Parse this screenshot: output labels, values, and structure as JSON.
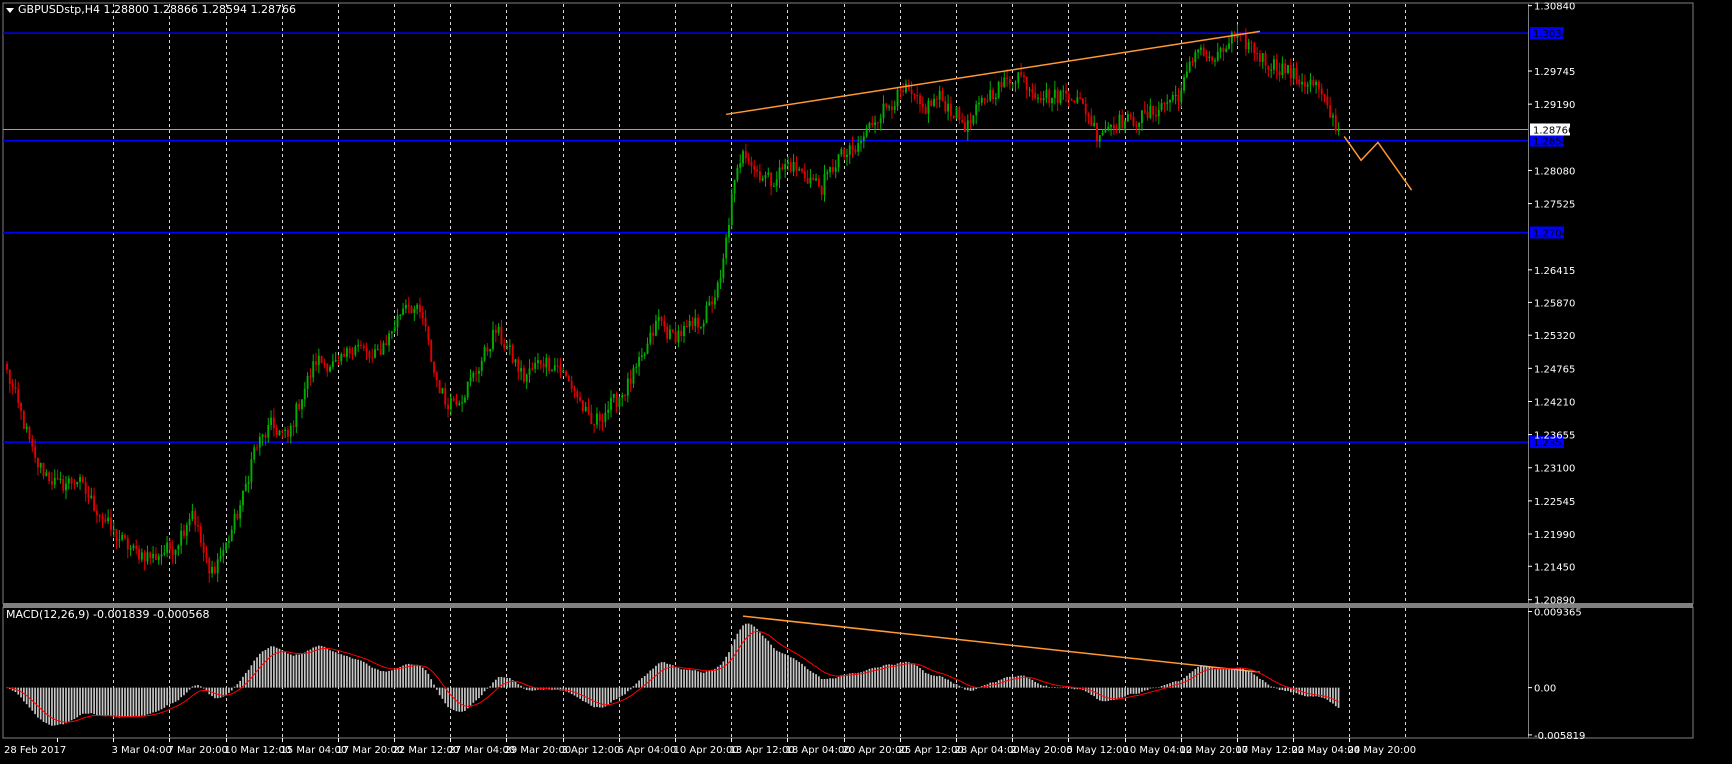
{
  "symbol_info": "GBPUSDstp,H4  1.28800 1.28866 1.28594 1.28766",
  "colors": {
    "background": "#000000",
    "grid": "#ffffff",
    "candle_up": "#00b000",
    "candle_down": "#e00000",
    "support_lines": "#0000ff",
    "trendlines": "#ff9933",
    "macd_hist": "#c8c8c8",
    "signal": "#ff0000"
  },
  "price_axis": {
    "ticks": [
      {
        "label": "1.30840",
        "value": 1.3084
      },
      {
        "label": "1.29745",
        "value": 1.29745
      },
      {
        "label": "1.29190",
        "value": 1.2919
      },
      {
        "label": "1.28080",
        "value": 1.2808
      },
      {
        "label": "1.27525",
        "value": 1.27525
      },
      {
        "label": "1.26415",
        "value": 1.26415
      },
      {
        "label": "1.25870",
        "value": 1.2587
      },
      {
        "label": "1.25320",
        "value": 1.2532
      },
      {
        "label": "1.24765",
        "value": 1.24765
      },
      {
        "label": "1.24210",
        "value": 1.2421
      },
      {
        "label": "1.23655",
        "value": 1.23655
      },
      {
        "label": "1.23100",
        "value": 1.231
      },
      {
        "label": "1.22545",
        "value": 1.22545
      },
      {
        "label": "1.21990",
        "value": 1.2199
      },
      {
        "label": "1.21450",
        "value": 1.2145
      },
      {
        "label": "1.20890",
        "value": 1.2089
      }
    ],
    "current_price": {
      "label": "1.28766",
      "value": 1.28766
    }
  },
  "horizontal_levels": [
    {
      "name": "level-1",
      "value": 1.3038,
      "label": "1.30380"
    },
    {
      "name": "level-2",
      "value": 1.2858,
      "label": "1.28580"
    },
    {
      "name": "level-3",
      "value": 1.2704,
      "label": "1.27040"
    },
    {
      "name": "level-4",
      "value": 1.2353,
      "label": "1.23530"
    }
  ],
  "time_axis": {
    "labels": [
      {
        "label": "28 Feb 2017",
        "index": 0
      },
      {
        "label": "3 Mar 04:00",
        "index": 20
      },
      {
        "label": "7 Mar 20:00",
        "index": 40
      },
      {
        "label": "10 Mar 12:00",
        "index": 60
      },
      {
        "label": "15 Mar 04:00",
        "index": 80
      },
      {
        "label": "17 Mar 20:00",
        "index": 100
      },
      {
        "label": "22 Mar 12:00",
        "index": 120
      },
      {
        "label": "27 Mar 04:00",
        "index": 140
      },
      {
        "label": "29 Mar 20:00",
        "index": 160
      },
      {
        "label": "3 Apr 12:00",
        "index": 180
      },
      {
        "label": "6 Apr 04:00",
        "index": 200
      },
      {
        "label": "10 Apr 20:00",
        "index": 220
      },
      {
        "label": "13 Apr 12:00",
        "index": 240
      },
      {
        "label": "18 Apr 04:00",
        "index": 260
      },
      {
        "label": "20 Apr 20:00",
        "index": 280
      },
      {
        "label": "25 Apr 12:00",
        "index": 300
      },
      {
        "label": "28 Apr 04:00",
        "index": 320
      },
      {
        "label": "2 May 20:00",
        "index": 340
      },
      {
        "label": "5 May 12:00",
        "index": 360
      },
      {
        "label": "10 May 04:00",
        "index": 380
      },
      {
        "label": "12 May 20:00",
        "index": 400
      },
      {
        "label": "17 May 12:00",
        "index": 420
      },
      {
        "label": "22 May 04:00",
        "index": 440
      },
      {
        "label": "24 May 20:00",
        "index": 460
      }
    ],
    "bar_count": 500
  },
  "price_keypoints": [
    [
      0,
      1.247
    ],
    [
      5,
      1.24
    ],
    [
      10,
      1.232
    ],
    [
      18,
      1.228
    ],
    [
      25,
      1.229
    ],
    [
      32,
      1.224
    ],
    [
      38,
      1.22
    ],
    [
      45,
      1.217
    ],
    [
      52,
      1.216
    ],
    [
      60,
      1.218
    ],
    [
      66,
      1.224
    ],
    [
      72,
      1.213
    ],
    [
      78,
      1.218
    ],
    [
      84,
      1.226
    ],
    [
      88,
      1.234
    ],
    [
      94,
      1.238
    ],
    [
      100,
      1.236
    ],
    [
      104,
      1.242
    ],
    [
      110,
      1.249
    ],
    [
      118,
      1.248
    ],
    [
      124,
      1.252
    ],
    [
      130,
      1.249
    ],
    [
      136,
      1.253
    ],
    [
      142,
      1.259
    ],
    [
      148,
      1.256
    ],
    [
      152,
      1.247
    ],
    [
      156,
      1.242
    ],
    [
      162,
      1.243
    ],
    [
      168,
      1.248
    ],
    [
      174,
      1.254
    ],
    [
      178,
      1.251
    ],
    [
      184,
      1.246
    ],
    [
      190,
      1.249
    ],
    [
      196,
      1.248
    ],
    [
      202,
      1.244
    ],
    [
      208,
      1.238
    ],
    [
      214,
      1.241
    ],
    [
      220,
      1.244
    ],
    [
      226,
      1.249
    ],
    [
      232,
      1.256
    ],
    [
      236,
      1.253
    ],
    [
      242,
      1.254
    ],
    [
      248,
      1.256
    ],
    [
      254,
      1.262
    ],
    [
      258,
      1.276
    ],
    [
      262,
      1.285
    ],
    [
      266,
      1.281
    ],
    [
      272,
      1.279
    ],
    [
      278,
      1.282
    ],
    [
      284,
      1.28
    ],
    [
      290,
      1.278
    ],
    [
      296,
      1.283
    ],
    [
      302,
      1.284
    ],
    [
      308,
      1.289
    ],
    [
      314,
      1.292
    ],
    [
      320,
      1.294
    ],
    [
      326,
      1.291
    ],
    [
      332,
      1.293
    ],
    [
      338,
      1.29
    ],
    [
      342,
      1.288
    ],
    [
      348,
      1.293
    ],
    [
      354,
      1.295
    ],
    [
      360,
      1.297
    ],
    [
      366,
      1.294
    ],
    [
      372,
      1.293
    ],
    [
      378,
      1.294
    ],
    [
      384,
      1.291
    ],
    [
      388,
      1.287
    ],
    [
      394,
      1.289
    ],
    [
      400,
      1.289
    ],
    [
      406,
      1.29
    ],
    [
      412,
      1.292
    ],
    [
      418,
      1.294
    ],
    [
      424,
      1.302
    ],
    [
      428,
      1.299
    ],
    [
      432,
      1.3
    ],
    [
      436,
      1.303
    ],
    [
      442,
      1.302
    ],
    [
      448,
      1.299
    ],
    [
      454,
      1.298
    ],
    [
      460,
      1.296
    ],
    [
      466,
      1.295
    ],
    [
      470,
      1.291
    ],
    [
      474,
      1.2877
    ]
  ],
  "projection": [
    {
      "index": 476,
      "value": 1.2865
    },
    {
      "index": 482,
      "value": 1.2825
    },
    {
      "index": 488,
      "value": 1.2855
    },
    {
      "index": 500,
      "value": 1.2775
    }
  ],
  "price_trendline": [
    {
      "index": 256,
      "value": 1.2902
    },
    {
      "index": 446,
      "value": 1.3041
    }
  ],
  "macd": {
    "label": "MACD(12,26,9) -0.001839 -0.000568",
    "axis_ticks": [
      {
        "label": "0.009365",
        "value": 0.009365
      },
      {
        "label": "0.00",
        "value": 0.0
      },
      {
        "label": "-0.005819",
        "value": -0.005819
      }
    ],
    "trendline": [
      {
        "index": 262,
        "value": 0.0088
      },
      {
        "index": 446,
        "value": 0.0019
      }
    ]
  }
}
